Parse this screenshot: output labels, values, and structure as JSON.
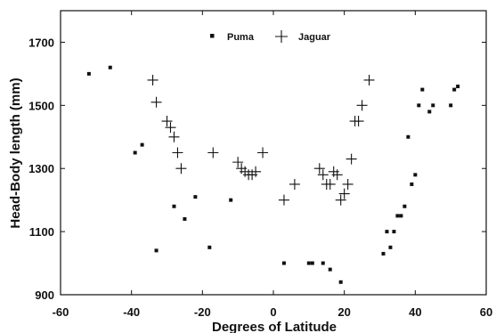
{
  "chart_data": {
    "type": "scatter",
    "xlabel": "Degrees of Latitude",
    "ylabel": "Head-Body length (mm)",
    "xlim": [
      -60,
      60
    ],
    "ylim": [
      900,
      1800
    ],
    "x_ticks": [
      -60,
      -40,
      -20,
      0,
      20,
      40,
      60
    ],
    "y_ticks": [
      900,
      1100,
      1300,
      1500,
      1700
    ],
    "grid": false,
    "legend_position": "top-center",
    "series": [
      {
        "name": "Puma",
        "marker": "square",
        "points": [
          [
            -52,
            1600
          ],
          [
            -46,
            1620
          ],
          [
            -39,
            1350
          ],
          [
            -37,
            1375
          ],
          [
            -33,
            1040
          ],
          [
            -28,
            1180
          ],
          [
            -25,
            1140
          ],
          [
            -22,
            1210
          ],
          [
            -18,
            1050
          ],
          [
            -12,
            1200
          ],
          [
            3,
            1000
          ],
          [
            10,
            1000
          ],
          [
            11,
            1000
          ],
          [
            14,
            1000
          ],
          [
            16,
            980
          ],
          [
            19,
            940
          ],
          [
            31,
            1030
          ],
          [
            32,
            1100
          ],
          [
            33,
            1050
          ],
          [
            34,
            1100
          ],
          [
            35,
            1150
          ],
          [
            36,
            1150
          ],
          [
            37,
            1180
          ],
          [
            38,
            1400
          ],
          [
            39,
            1250
          ],
          [
            40,
            1280
          ],
          [
            41,
            1500
          ],
          [
            42,
            1550
          ],
          [
            44,
            1480
          ],
          [
            45,
            1500
          ],
          [
            50,
            1500
          ],
          [
            51,
            1550
          ],
          [
            52,
            1560
          ]
        ]
      },
      {
        "name": "Jaguar",
        "marker": "plus",
        "points": [
          [
            -34,
            1580
          ],
          [
            -33,
            1510
          ],
          [
            -30,
            1450
          ],
          [
            -29,
            1430
          ],
          [
            -28,
            1400
          ],
          [
            -27,
            1350
          ],
          [
            -26,
            1300
          ],
          [
            -17,
            1350
          ],
          [
            -10,
            1320
          ],
          [
            -9,
            1300
          ],
          [
            -8,
            1290
          ],
          [
            -7,
            1280
          ],
          [
            -6,
            1280
          ],
          [
            -5,
            1290
          ],
          [
            -3,
            1350
          ],
          [
            3,
            1200
          ],
          [
            6,
            1250
          ],
          [
            13,
            1300
          ],
          [
            14,
            1280
          ],
          [
            15,
            1250
          ],
          [
            16,
            1250
          ],
          [
            17,
            1290
          ],
          [
            18,
            1280
          ],
          [
            19,
            1200
          ],
          [
            20,
            1220
          ],
          [
            21,
            1250
          ],
          [
            22,
            1330
          ],
          [
            23,
            1450
          ],
          [
            24,
            1450
          ],
          [
            25,
            1500
          ],
          [
            27,
            1580
          ]
        ]
      }
    ]
  }
}
